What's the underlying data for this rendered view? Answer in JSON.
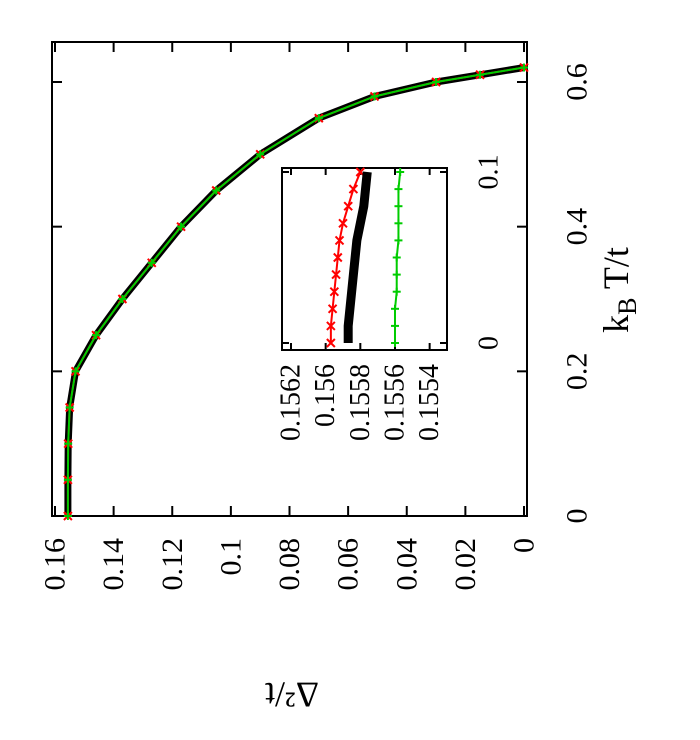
{
  "chart_data": [
    {
      "type": "line",
      "orientation": "rotated-90-clockwise",
      "xlabel": "k_B T/t",
      "ylabel": "Δ²/t",
      "xlim": [
        0,
        0.65
      ],
      "ylim": [
        0,
        0.16
      ],
      "xticks": [
        "0",
        "0.2",
        "0.4",
        "0.6"
      ],
      "yticks": [
        "0",
        "0.02",
        "0.04",
        "0.06",
        "0.08",
        "0.1",
        "0.12",
        "0.14",
        "0.16"
      ],
      "grid": false,
      "series": [
        {
          "style": "thick black line",
          "color": "#000000",
          "x": [
            0,
            0.05,
            0.1,
            0.15,
            0.2,
            0.25,
            0.3,
            0.35,
            0.4,
            0.45,
            0.5,
            0.55,
            0.58,
            0.6,
            0.61,
            0.62
          ],
          "y": [
            0.1556,
            0.1556,
            0.1555,
            0.155,
            0.153,
            0.146,
            0.137,
            0.127,
            0.117,
            0.105,
            0.09,
            0.07,
            0.051,
            0.03,
            0.015,
            0
          ]
        },
        {
          "style": "red line with x markers",
          "color": "#ff0000",
          "x": [
            0,
            0.05,
            0.1,
            0.15,
            0.2,
            0.25,
            0.3,
            0.35,
            0.4,
            0.45,
            0.5,
            0.55,
            0.58,
            0.6,
            0.61,
            0.62
          ],
          "y": [
            0.1556,
            0.1556,
            0.1555,
            0.155,
            0.153,
            0.146,
            0.137,
            0.127,
            0.117,
            0.105,
            0.09,
            0.07,
            0.051,
            0.03,
            0.015,
            0
          ]
        },
        {
          "style": "green line with + markers",
          "color": "#00cc00",
          "x": [
            0,
            0.05,
            0.1,
            0.15,
            0.2,
            0.25,
            0.3,
            0.35,
            0.4,
            0.45,
            0.5,
            0.55,
            0.58,
            0.6,
            0.61,
            0.62
          ],
          "y": [
            0.1556,
            0.1556,
            0.1555,
            0.155,
            0.153,
            0.146,
            0.137,
            0.127,
            0.117,
            0.105,
            0.09,
            0.07,
            0.051,
            0.03,
            0.015,
            0
          ]
        }
      ]
    },
    {
      "type": "line",
      "role": "inset",
      "orientation": "rotated-90-clockwise",
      "xlim": [
        0,
        0.11
      ],
      "ylim": [
        0.1553,
        0.1563
      ],
      "xticks": [
        "0",
        "0.1"
      ],
      "yticks": [
        "0.1562",
        "0.156",
        "0.1558",
        "0.1556",
        "0.1554"
      ],
      "series": [
        {
          "style": "red line with x markers",
          "color": "#ff0000",
          "x": [
            0,
            0.01,
            0.02,
            0.03,
            0.04,
            0.05,
            0.06,
            0.07,
            0.08,
            0.09,
            0.1
          ],
          "y": [
            0.15597,
            0.15597,
            0.15596,
            0.15595,
            0.15594,
            0.15593,
            0.15592,
            0.1559,
            0.15587,
            0.15584,
            0.1558
          ]
        },
        {
          "style": "thick black line",
          "color": "#000000",
          "x": [
            0,
            0.01,
            0.02,
            0.03,
            0.04,
            0.05,
            0.06,
            0.07,
            0.08,
            0.09,
            0.1
          ],
          "y": [
            0.15587,
            0.15587,
            0.15586,
            0.15585,
            0.15584,
            0.15583,
            0.15582,
            0.1558,
            0.15578,
            0.15577,
            0.15576
          ]
        },
        {
          "style": "green line with + markers",
          "color": "#00cc00",
          "x": [
            0,
            0.01,
            0.02,
            0.03,
            0.04,
            0.05,
            0.06,
            0.07,
            0.08,
            0.09,
            0.1
          ],
          "y": [
            0.1556,
            0.1556,
            0.1556,
            0.15559,
            0.15559,
            0.15559,
            0.15558,
            0.15558,
            0.15558,
            0.15558,
            0.15557
          ]
        }
      ]
    }
  ]
}
